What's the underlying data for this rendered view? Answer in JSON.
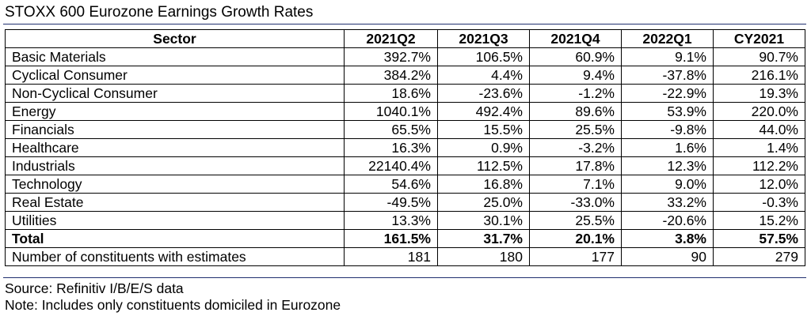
{
  "chart_data": {
    "type": "table",
    "title": "STOXX 600 Eurozone Earnings Growth Rates",
    "columns": [
      "Sector",
      "2021Q2",
      "2021Q3",
      "2021Q4",
      "2022Q1",
      "CY2021"
    ],
    "rows": [
      [
        "Basic Materials",
        "392.7%",
        "106.5%",
        "60.9%",
        "9.1%",
        "90.7%"
      ],
      [
        "Cyclical Consumer",
        "384.2%",
        "4.4%",
        "9.4%",
        "-37.8%",
        "216.1%"
      ],
      [
        "Non-Cyclical Consumer",
        "18.6%",
        "-23.6%",
        "-1.2%",
        "-22.9%",
        "19.3%"
      ],
      [
        "Energy",
        "1040.1%",
        "492.4%",
        "89.6%",
        "53.9%",
        "220.0%"
      ],
      [
        "Financials",
        "65.5%",
        "15.5%",
        "25.5%",
        "-9.8%",
        "44.0%"
      ],
      [
        "Healthcare",
        "16.3%",
        "0.9%",
        "-3.2%",
        "1.6%",
        "1.4%"
      ],
      [
        "Industrials",
        "22140.4%",
        "112.5%",
        "17.8%",
        "12.3%",
        "112.2%"
      ],
      [
        "Technology",
        "54.6%",
        "16.8%",
        "7.1%",
        "9.0%",
        "12.0%"
      ],
      [
        "Real Estate",
        "-49.5%",
        "25.0%",
        "-33.0%",
        "33.2%",
        "-0.3%"
      ],
      [
        "Utilities",
        "13.3%",
        "30.1%",
        "25.5%",
        "-20.6%",
        "15.2%"
      ]
    ],
    "total": [
      "Total",
      "161.5%",
      "31.7%",
      "20.1%",
      "3.8%",
      "57.5%"
    ],
    "constituents": [
      "Number of constituents with estimates",
      "181",
      "180",
      "177",
      "90",
      "279"
    ]
  },
  "footer": {
    "source": "Source: Refinitiv I/B/E/S data",
    "note": "Note: Includes only constituents domiciled in Eurozone"
  }
}
